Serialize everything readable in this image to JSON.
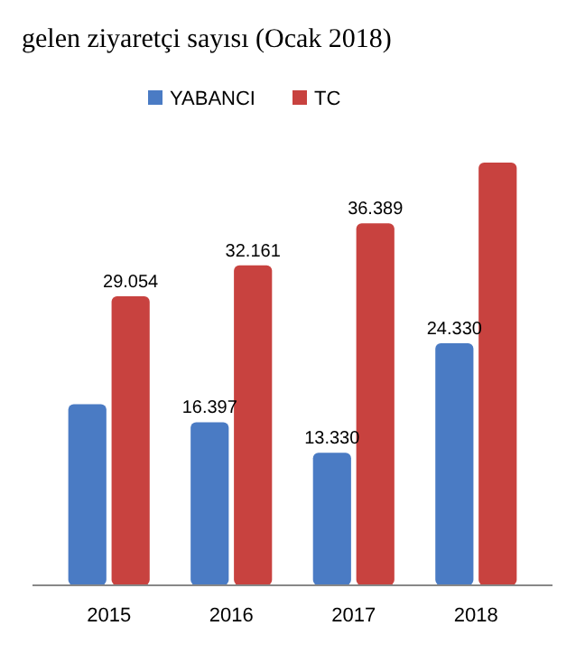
{
  "chart_data": {
    "type": "bar",
    "title": "gelen ziyaretçi sayısı (Ocak 2018)",
    "categories": [
      "2015",
      "2016",
      "2017",
      "2018"
    ],
    "series": [
      {
        "name": "YABANCI",
        "color": "#4a7bc4",
        "values": [
          18200,
          16397,
          13330,
          24330
        ],
        "value_labels": [
          null,
          "16.397",
          "13.330",
          "24.330"
        ]
      },
      {
        "name": "TC",
        "color": "#c8423f",
        "values": [
          29054,
          32161,
          36389,
          42500
        ],
        "value_labels": [
          "29.054",
          "32.161",
          "36.389",
          null
        ]
      }
    ],
    "legend": "top"
  }
}
